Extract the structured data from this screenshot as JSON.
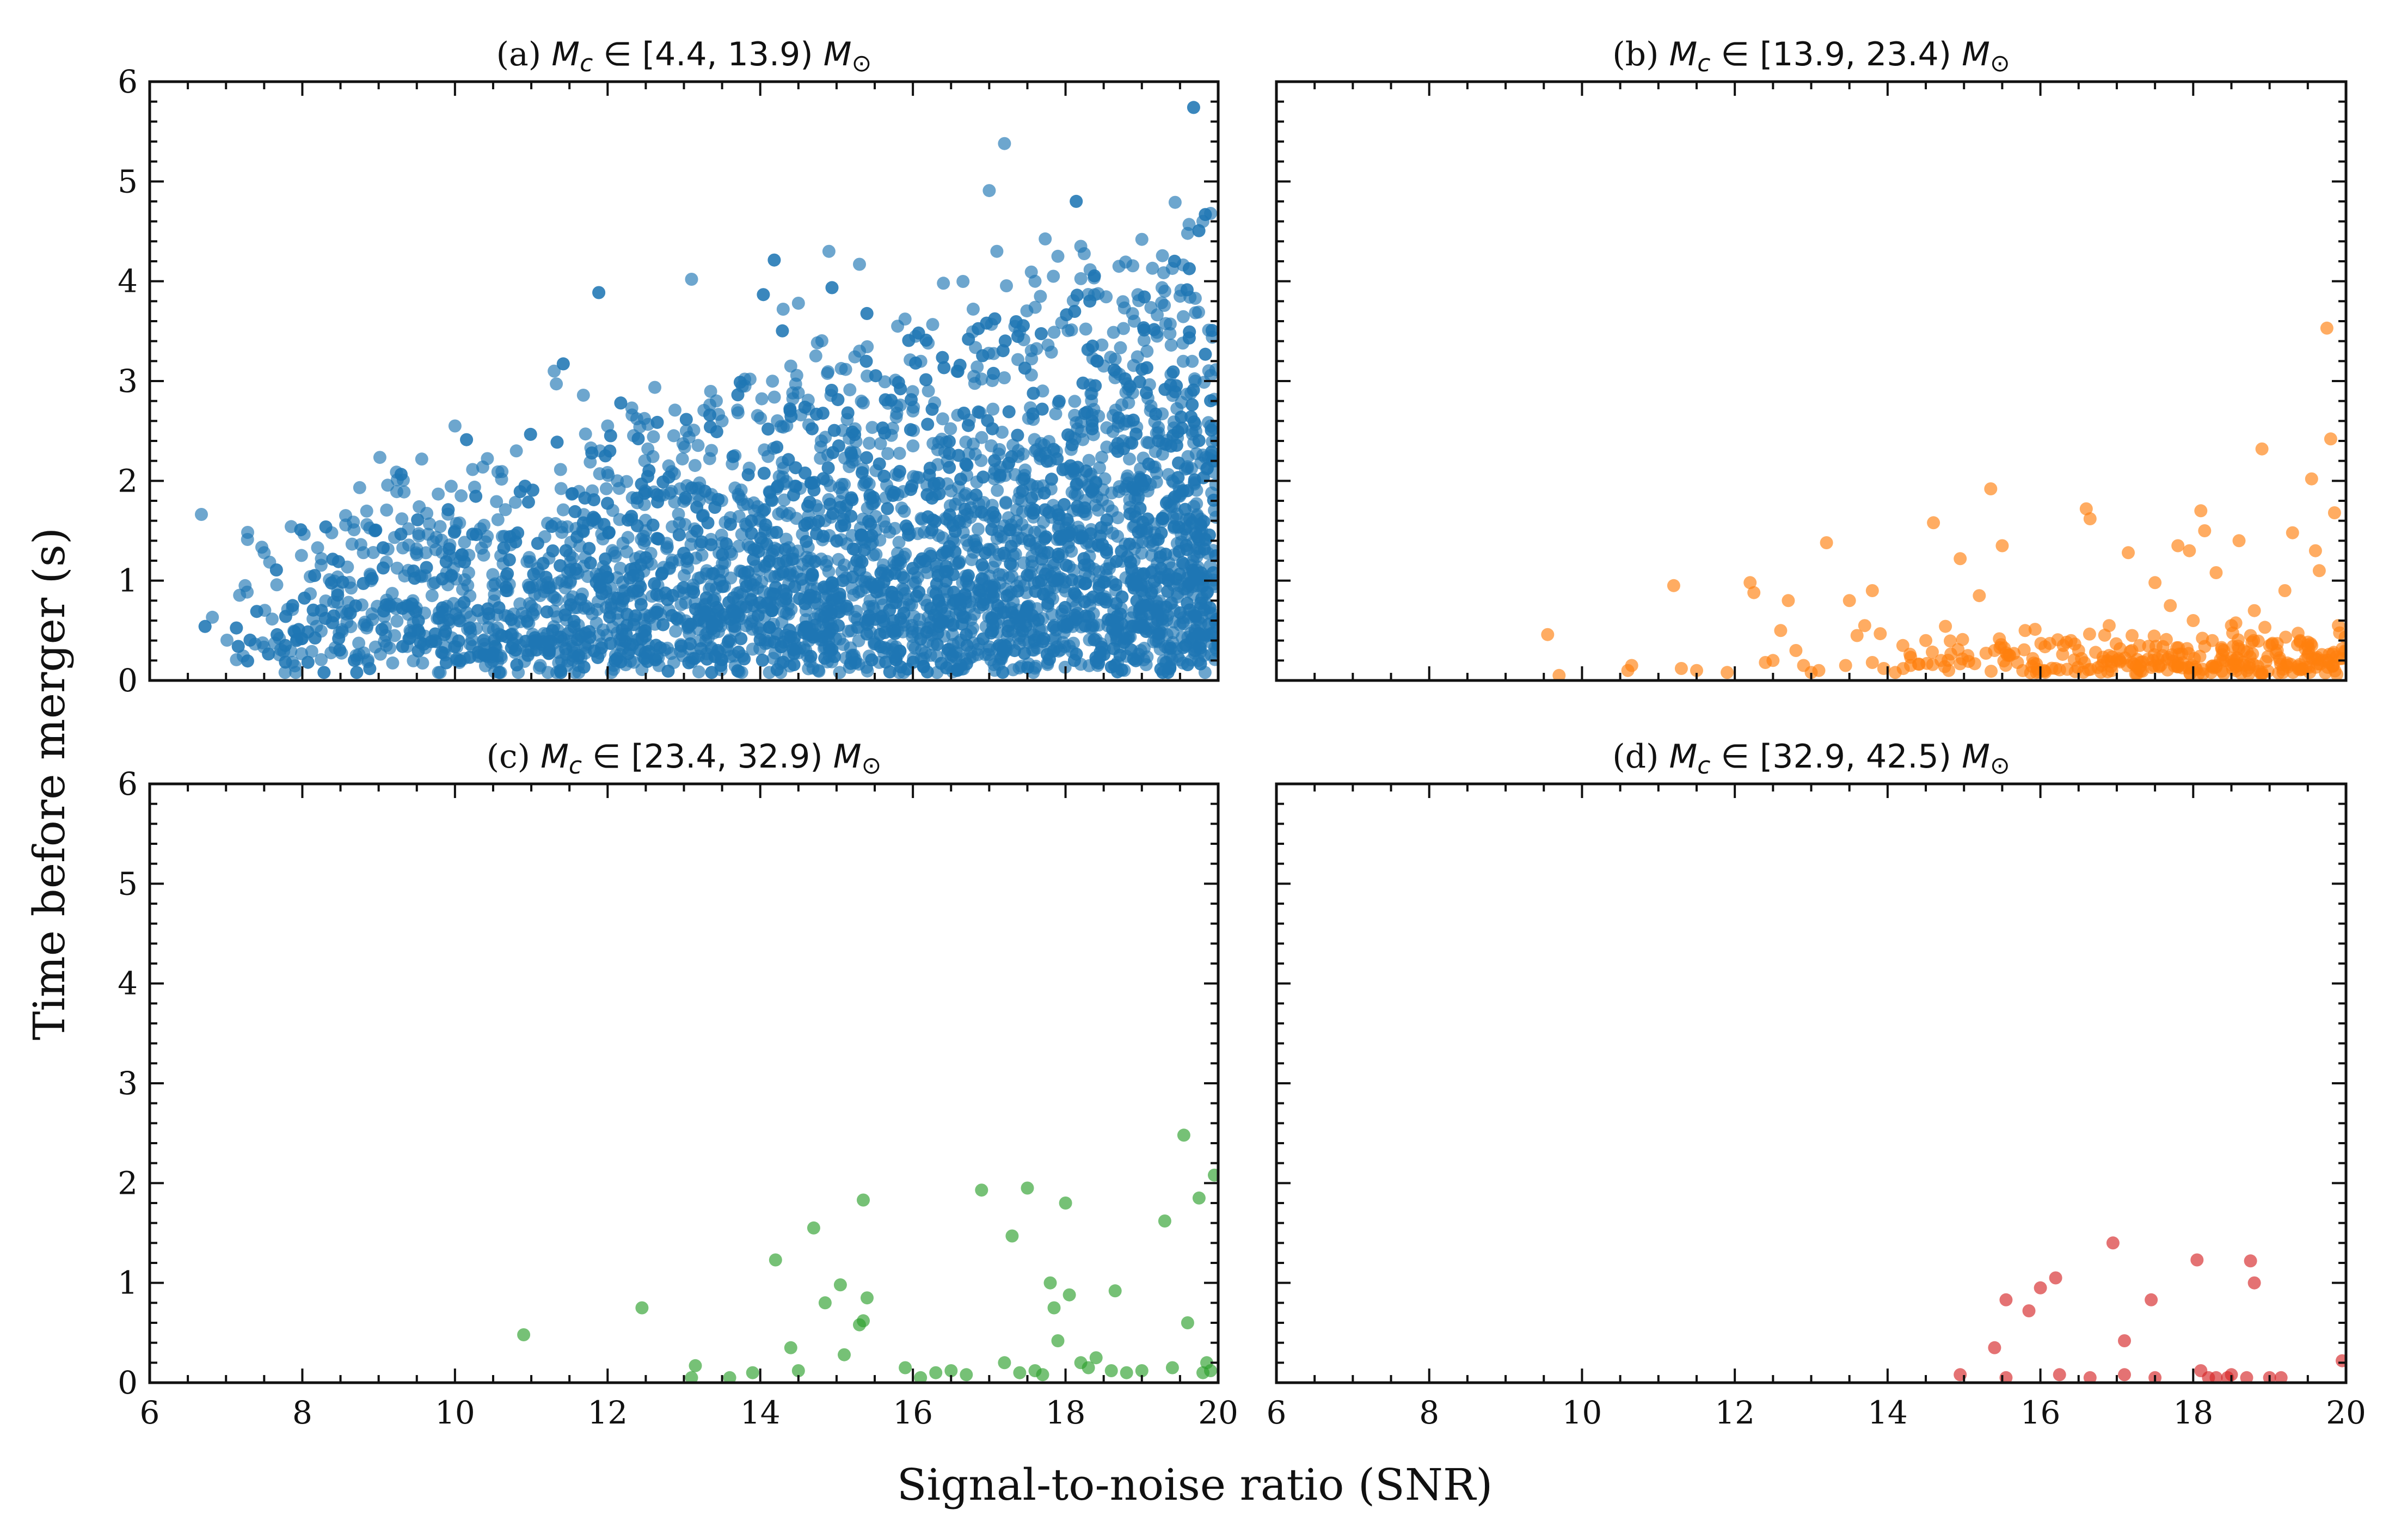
{
  "figure": {
    "xlabel": "Signal-to-noise ratio (SNR)",
    "ylabel": "Time before merger (s)"
  },
  "chart_data": [
    {
      "type": "scatter",
      "panel": "a",
      "title_prefix": "(a)",
      "title_symbol": "M",
      "title_subscript": "c",
      "title_interval": "∈ [4.4, 13.9)",
      "title_unit": "M",
      "title_unit_subscript": "⊙",
      "color": "#1f77b4",
      "xlim": [
        6,
        20
      ],
      "ylim": [
        0,
        6
      ],
      "xticks": [
        "6",
        "8",
        "10",
        "12",
        "14",
        "16",
        "18",
        "20"
      ],
      "yticks": [
        "0",
        "1",
        "2",
        "3",
        "4",
        "5",
        "6"
      ],
      "points_sample": [
        [
          7.25,
          0.95
        ],
        [
          7.5,
          1.28
        ],
        [
          8.2,
          1.33
        ],
        [
          8.25,
          1.22
        ],
        [
          8.4,
          0.58
        ],
        [
          8.8,
          1.28
        ],
        [
          8.85,
          0.55
        ],
        [
          8.9,
          1.0
        ],
        [
          9.1,
          0.35
        ],
        [
          9.45,
          0.72
        ],
        [
          9.5,
          1.26
        ],
        [
          9.7,
          0.85
        ],
        [
          9.75,
          1.31
        ],
        [
          10.0,
          2.55
        ],
        [
          10.0,
          1.5
        ],
        [
          10.05,
          0.62
        ],
        [
          10.5,
          0.2
        ],
        [
          10.6,
          1.25
        ],
        [
          11.0,
          0.3
        ],
        [
          11.3,
          3.1
        ],
        [
          11.4,
          1.0
        ],
        [
          11.8,
          1.9
        ],
        [
          11.9,
          2.3
        ],
        [
          12.0,
          2.55
        ],
        [
          12.2,
          0.8
        ],
        [
          12.8,
          2.15
        ],
        [
          13.1,
          4.02
        ],
        [
          13.2,
          1.8
        ],
        [
          13.5,
          2.6
        ],
        [
          13.8,
          2.95
        ],
        [
          14.3,
          3.72
        ],
        [
          14.4,
          3.15
        ],
        [
          14.5,
          3.78
        ],
        [
          14.8,
          2.4
        ],
        [
          14.9,
          4.3
        ],
        [
          15.3,
          4.17
        ],
        [
          15.4,
          3.05
        ],
        [
          15.8,
          3.55
        ],
        [
          16.2,
          3.38
        ],
        [
          16.4,
          3.98
        ],
        [
          17.1,
          4.3
        ],
        [
          17.2,
          5.38
        ],
        [
          17.6,
          4.0
        ],
        [
          17.9,
          4.25
        ],
        [
          18.2,
          4.35
        ],
        [
          18.7,
          4.15
        ],
        [
          19.0,
          4.42
        ],
        [
          19.3,
          3.9
        ],
        [
          19.6,
          4.48
        ],
        [
          19.8,
          4.6
        ],
        [
          19.9,
          4.68
        ],
        [
          16.9,
          3.02
        ],
        [
          17.4,
          3.5
        ],
        [
          18.9,
          3.6
        ],
        [
          19.5,
          3.85
        ],
        [
          15.2,
          2.25
        ],
        [
          16.0,
          2.7
        ],
        [
          17.7,
          2.9
        ],
        [
          18.5,
          3.15
        ],
        [
          19.2,
          3.45
        ],
        [
          14.0,
          1.6
        ],
        [
          15.0,
          1.4
        ],
        [
          16.5,
          1.9
        ],
        [
          17.8,
          2.2
        ],
        [
          18.8,
          2.6
        ],
        [
          19.7,
          3.0
        ],
        [
          12.5,
          1.5
        ],
        [
          13.3,
          1.1
        ],
        [
          13.9,
          0.9
        ],
        [
          14.6,
          0.7
        ],
        [
          15.6,
          1.1
        ],
        [
          16.8,
          1.4
        ],
        [
          18.1,
          1.7
        ],
        [
          19.4,
          2.0
        ]
      ]
    },
    {
      "type": "scatter",
      "panel": "b",
      "title_prefix": "(b)",
      "title_symbol": "M",
      "title_subscript": "c",
      "title_interval": "∈ [13.9, 23.4)",
      "title_unit": "M",
      "title_unit_subscript": "⊙",
      "color": "#ff7f0e",
      "xlim": [
        6,
        20
      ],
      "ylim": [
        0,
        6
      ],
      "xticks": [
        "6",
        "8",
        "10",
        "12",
        "14",
        "16",
        "18",
        "20"
      ],
      "yticks": [
        "0",
        "1",
        "2",
        "3",
        "4",
        "5",
        "6"
      ],
      "points": [
        [
          9.55,
          0.46
        ],
        [
          9.7,
          0.05
        ],
        [
          10.6,
          0.1
        ],
        [
          10.65,
          0.15
        ],
        [
          11.2,
          0.95
        ],
        [
          11.3,
          0.12
        ],
        [
          11.5,
          0.1
        ],
        [
          11.9,
          0.08
        ],
        [
          12.2,
          0.98
        ],
        [
          12.25,
          0.88
        ],
        [
          12.4,
          0.18
        ],
        [
          12.5,
          0.2
        ],
        [
          12.7,
          0.8
        ],
        [
          12.8,
          0.3
        ],
        [
          12.9,
          0.15
        ],
        [
          13.0,
          0.08
        ],
        [
          13.1,
          0.1
        ],
        [
          13.2,
          1.38
        ],
        [
          13.45,
          0.15
        ],
        [
          13.5,
          0.8
        ],
        [
          13.6,
          0.45
        ],
        [
          13.7,
          0.55
        ],
        [
          13.8,
          0.18
        ],
        [
          13.95,
          0.12
        ],
        [
          14.1,
          0.08
        ],
        [
          14.2,
          0.35
        ],
        [
          14.3,
          0.15
        ],
        [
          14.6,
          1.58
        ],
        [
          14.7,
          0.2
        ],
        [
          14.8,
          0.1
        ],
        [
          14.95,
          1.22
        ],
        [
          15.05,
          0.25
        ],
        [
          15.2,
          0.85
        ],
        [
          15.35,
          1.92
        ],
        [
          15.5,
          1.35
        ],
        [
          15.6,
          0.25
        ],
        [
          15.7,
          0.18
        ],
        [
          15.8,
          0.5
        ],
        [
          15.9,
          0.22
        ],
        [
          16.05,
          0.1
        ],
        [
          16.2,
          0.12
        ],
        [
          16.3,
          0.35
        ],
        [
          16.5,
          0.3
        ],
        [
          16.6,
          1.72
        ],
        [
          16.65,
          1.62
        ],
        [
          16.8,
          0.15
        ],
        [
          17.0,
          0.2
        ],
        [
          17.15,
          1.28
        ],
        [
          17.3,
          0.35
        ],
        [
          17.5,
          0.98
        ],
        [
          17.6,
          0.25
        ],
        [
          17.8,
          1.35
        ],
        [
          17.95,
          1.3
        ],
        [
          18.1,
          1.7
        ],
        [
          18.15,
          1.5
        ],
        [
          18.25,
          0.4
        ],
        [
          18.3,
          1.08
        ],
        [
          18.4,
          0.3
        ],
        [
          18.5,
          0.55
        ],
        [
          18.6,
          1.4
        ],
        [
          18.75,
          0.45
        ],
        [
          18.9,
          2.32
        ],
        [
          19.0,
          0.35
        ],
        [
          19.1,
          0.3
        ],
        [
          19.3,
          1.48
        ],
        [
          19.4,
          0.4
        ],
        [
          19.5,
          0.25
        ],
        [
          19.65,
          1.1
        ],
        [
          19.7,
          0.2
        ],
        [
          19.75,
          3.53
        ],
        [
          19.8,
          2.42
        ],
        [
          19.85,
          1.68
        ],
        [
          19.9,
          0.55
        ],
        [
          19.95,
          0.22
        ],
        [
          19.6,
          1.3
        ],
        [
          19.55,
          2.02
        ],
        [
          18.0,
          0.6
        ],
        [
          17.2,
          0.45
        ],
        [
          16.4,
          0.4
        ],
        [
          15.4,
          0.3
        ],
        [
          14.5,
          0.4
        ],
        [
          13.8,
          0.9
        ],
        [
          12.6,
          0.5
        ],
        [
          16.9,
          0.55
        ],
        [
          18.8,
          0.7
        ],
        [
          19.2,
          0.9
        ],
        [
          17.7,
          0.75
        ]
      ]
    },
    {
      "type": "scatter",
      "panel": "c",
      "title_prefix": "(c)",
      "title_symbol": "M",
      "title_subscript": "c",
      "title_interval": "∈ [23.4, 32.9)",
      "title_unit": "M",
      "title_unit_subscript": "⊙",
      "color": "#2ca02c",
      "xlim": [
        6,
        20
      ],
      "ylim": [
        0,
        6
      ],
      "xticks": [
        "6",
        "8",
        "10",
        "12",
        "14",
        "16",
        "18",
        "20"
      ],
      "yticks": [
        "0",
        "1",
        "2",
        "3",
        "4",
        "5",
        "6"
      ],
      "points": [
        [
          10.9,
          0.48
        ],
        [
          12.45,
          0.75
        ],
        [
          13.1,
          0.05
        ],
        [
          13.15,
          0.17
        ],
        [
          13.6,
          0.05
        ],
        [
          13.9,
          0.1
        ],
        [
          14.2,
          1.23
        ],
        [
          14.4,
          0.35
        ],
        [
          14.5,
          0.12
        ],
        [
          14.7,
          1.55
        ],
        [
          14.85,
          0.8
        ],
        [
          15.05,
          0.98
        ],
        [
          15.1,
          0.28
        ],
        [
          15.3,
          0.58
        ],
        [
          15.35,
          0.62
        ],
        [
          15.4,
          0.85
        ],
        [
          15.35,
          1.83
        ],
        [
          15.9,
          0.15
        ],
        [
          16.1,
          0.05
        ],
        [
          16.5,
          0.12
        ],
        [
          16.7,
          0.08
        ],
        [
          16.9,
          1.93
        ],
        [
          17.2,
          0.2
        ],
        [
          17.3,
          1.47
        ],
        [
          17.5,
          1.95
        ],
        [
          17.6,
          0.12
        ],
        [
          17.7,
          0.08
        ],
        [
          17.8,
          1.0
        ],
        [
          17.85,
          0.75
        ],
        [
          17.9,
          0.42
        ],
        [
          18.0,
          1.8
        ],
        [
          18.05,
          0.88
        ],
        [
          18.2,
          0.2
        ],
        [
          18.3,
          0.15
        ],
        [
          18.6,
          0.12
        ],
        [
          18.65,
          0.92
        ],
        [
          18.8,
          0.1
        ],
        [
          19.0,
          0.12
        ],
        [
          19.3,
          1.62
        ],
        [
          19.4,
          0.15
        ],
        [
          19.55,
          2.48
        ],
        [
          19.6,
          0.6
        ],
        [
          19.75,
          1.85
        ],
        [
          19.8,
          0.1
        ],
        [
          19.85,
          0.2
        ],
        [
          19.95,
          2.08
        ],
        [
          19.9,
          0.12
        ],
        [
          17.4,
          0.1
        ],
        [
          16.3,
          0.1
        ],
        [
          18.4,
          0.25
        ]
      ]
    },
    {
      "type": "scatter",
      "panel": "d",
      "title_prefix": "(d)",
      "title_symbol": "M",
      "title_subscript": "c",
      "title_interval": "∈ [32.9, 42.5)",
      "title_unit": "M",
      "title_unit_subscript": "⊙",
      "color": "#d62728",
      "xlim": [
        6,
        20
      ],
      "ylim": [
        0,
        6
      ],
      "xticks": [
        "6",
        "8",
        "10",
        "12",
        "14",
        "16",
        "18",
        "20"
      ],
      "yticks": [
        "0",
        "1",
        "2",
        "3",
        "4",
        "5",
        "6"
      ],
      "points": [
        [
          14.95,
          0.08
        ],
        [
          15.4,
          0.35
        ],
        [
          15.55,
          0.83
        ],
        [
          15.55,
          0.05
        ],
        [
          15.85,
          0.72
        ],
        [
          16.0,
          0.95
        ],
        [
          16.2,
          1.05
        ],
        [
          16.25,
          0.08
        ],
        [
          16.65,
          0.05
        ],
        [
          16.95,
          1.4
        ],
        [
          17.1,
          0.42
        ],
        [
          17.1,
          0.08
        ],
        [
          17.45,
          0.83
        ],
        [
          17.5,
          0.05
        ],
        [
          18.05,
          1.23
        ],
        [
          18.1,
          0.12
        ],
        [
          18.3,
          0.05
        ],
        [
          18.45,
          0.05
        ],
        [
          18.5,
          0.08
        ],
        [
          18.7,
          0.05
        ],
        [
          18.75,
          1.22
        ],
        [
          18.8,
          1.0
        ],
        [
          19.0,
          0.05
        ],
        [
          19.15,
          0.05
        ],
        [
          19.95,
          0.22
        ],
        [
          18.2,
          0.05
        ]
      ]
    }
  ]
}
